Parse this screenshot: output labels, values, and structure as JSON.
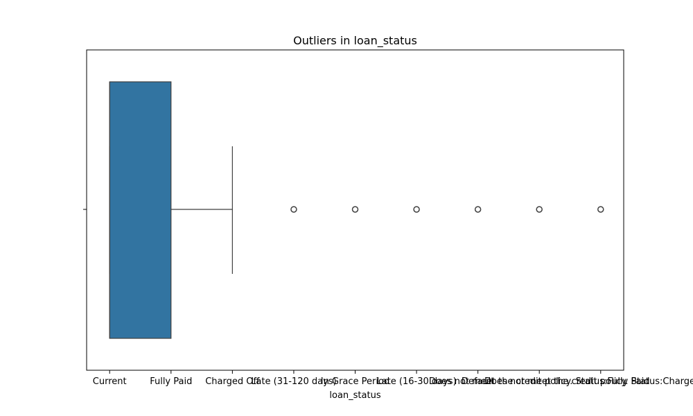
{
  "chart_data": {
    "type": "boxplot",
    "title": "Outliers in loan_status",
    "xlabel": "loan_status",
    "ylabel": "",
    "categories": [
      "Current",
      "Fully Paid",
      "Charged Off",
      "Late (31-120 days)",
      "In Grace Period",
      "Late (16-30 days)",
      "Default",
      "Does not meet the credit policy. Status:Fully Paid",
      "Does not meet the credit policy. Status:Charged Off"
    ],
    "xlim": [
      -0.375,
      8.375
    ],
    "box": {
      "q1": 0,
      "median": 0,
      "q3": 1,
      "whisker_low": 0,
      "whisker_high": 2
    },
    "outliers": [
      3,
      4,
      5,
      6,
      7,
      8
    ],
    "box_color": "#3274a1",
    "line_color": "#3f3f3f",
    "grid": false,
    "legend": "none"
  }
}
